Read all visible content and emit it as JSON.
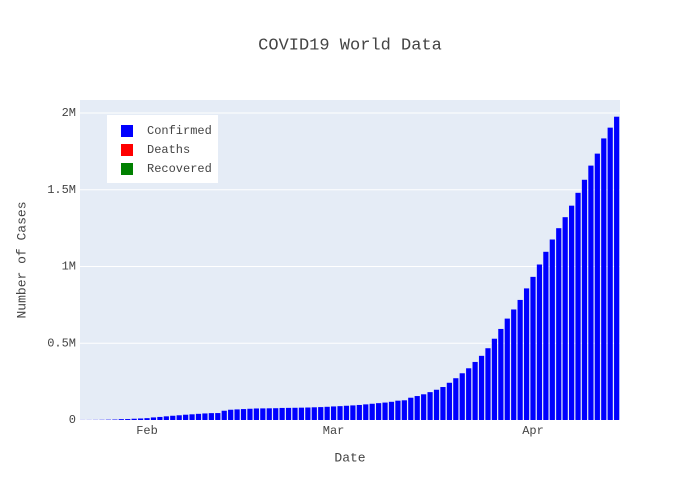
{
  "chart_data": {
    "type": "bar",
    "title": "COVID19 World Data",
    "x_label": "Date",
    "y_label": "Number of Cases",
    "categories": [
      null,
      null,
      null,
      null,
      null,
      null,
      null,
      null,
      null,
      null,
      "Feb",
      null,
      null,
      null,
      null,
      null,
      null,
      null,
      null,
      null,
      null,
      null,
      null,
      null,
      null,
      null,
      null,
      null,
      null,
      null,
      null,
      null,
      null,
      null,
      null,
      null,
      null,
      null,
      null,
      "Mar",
      null,
      null,
      null,
      null,
      null,
      null,
      null,
      null,
      null,
      null,
      null,
      null,
      null,
      null,
      null,
      null,
      null,
      null,
      null,
      null,
      null,
      null,
      null,
      null,
      null,
      null,
      null,
      null,
      null,
      null,
      "Apr",
      null,
      null,
      null,
      null,
      null,
      null,
      null,
      null,
      null,
      null,
      null,
      null,
      null
    ],
    "series": [
      {
        "name": "Confirmed",
        "color": "#0000ff",
        "values": [
          555,
          654,
          941,
          1434,
          2118,
          2927,
          5578,
          6166,
          8234,
          9927,
          12038,
          16787,
          19881,
          23892,
          27635,
          30794,
          34391,
          37120,
          40150,
          42762,
          44802,
          45221,
          60368,
          66885,
          69030,
          71224,
          73258,
          75136,
          75639,
          76197,
          76819,
          78572,
          78958,
          79561,
          80406,
          81388,
          82746,
          84112,
          86011,
          88369,
          90306,
          92840,
          95120,
          97886,
          101801,
          105847,
          109821,
          113590,
          118620,
          125875,
          128352,
          145205,
          156101,
          167454,
          181574,
          197102,
          214821,
          242570,
          272208,
          304507,
          336953,
          378235,
          418045,
          467653,
          529591,
          593291,
          660706,
          720117,
          782365,
          857487,
          932605,
          1013157,
          1095917,
          1176060,
          1249754,
          1321481,
          1396476,
          1480202,
          1565278,
          1657526,
          1735650,
          1834721,
          1904838,
          1976191
        ]
      },
      {
        "name": "Deaths",
        "color": "#ff0000"
      },
      {
        "name": "Recovered",
        "color": "#008000"
      }
    ],
    "ylim": [
      0,
      2085000
    ],
    "yticks": [
      0,
      {
        "value": 500000,
        "label": "0.5M"
      },
      {
        "value": 1000000,
        "label": "1M"
      },
      {
        "value": 1500000,
        "label": "1.5M"
      },
      {
        "value": 2000000,
        "label": "2M"
      }
    ],
    "grid": true,
    "legend": "top-left",
    "plot_background": "#e5ecf6"
  }
}
